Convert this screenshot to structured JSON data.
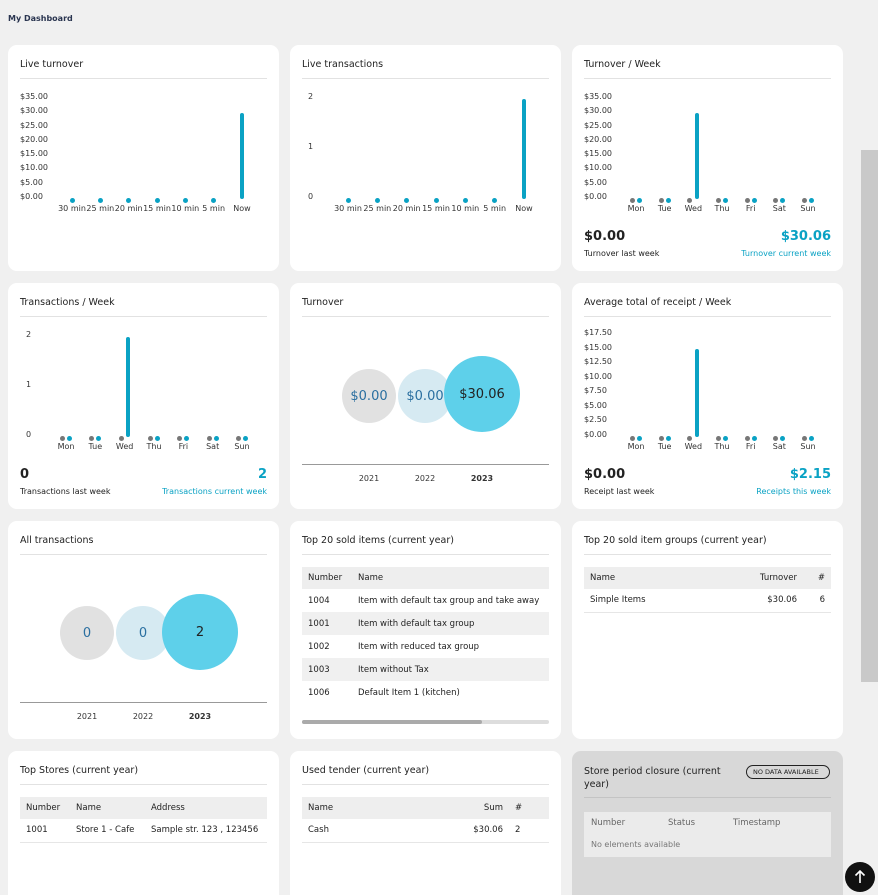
{
  "page": {
    "title": "My Dashboard"
  },
  "colors": {
    "accent": "#0aa2c4",
    "bubble_current": "#5ed0ea",
    "bubble_prev": "#d6eaf2",
    "bubble_old": "#e1e1e1",
    "card": "#ffffff",
    "page_bg": "#f0f0f0"
  },
  "live_turnover": {
    "title": "Live turnover",
    "y_ticks": [
      "$35.00",
      "$30.00",
      "$25.00",
      "$20.00",
      "$15.00",
      "$10.00",
      "$5.00",
      "$0.00"
    ],
    "x_ticks": [
      "30 min",
      "25 min",
      "20 min",
      "15 min",
      "10 min",
      "5 min",
      "Now"
    ]
  },
  "live_transactions": {
    "title": "Live transactions",
    "y_ticks": [
      "2",
      "1",
      "0"
    ],
    "x_ticks": [
      "30 min",
      "25 min",
      "20 min",
      "15 min",
      "10 min",
      "5 min",
      "Now"
    ]
  },
  "turnover_week": {
    "title": "Turnover / Week",
    "y_ticks": [
      "$35.00",
      "$30.00",
      "$25.00",
      "$20.00",
      "$15.00",
      "$10.00",
      "$5.00",
      "$0.00"
    ],
    "x_ticks": [
      "Mon",
      "Tue",
      "Wed",
      "Thu",
      "Fri",
      "Sat",
      "Sun"
    ],
    "last_value": "$0.00",
    "last_label": "Turnover last week",
    "current_value": "$30.06",
    "current_label": "Turnover current week"
  },
  "transactions_week": {
    "title": "Transactions / Week",
    "y_ticks": [
      "2",
      "1",
      "0"
    ],
    "x_ticks": [
      "Mon",
      "Tue",
      "Wed",
      "Thu",
      "Fri",
      "Sat",
      "Sun"
    ],
    "last_value": "0",
    "last_label": "Transactions last week",
    "current_value": "2",
    "current_label": "Transactions current week"
  },
  "turnover": {
    "title": "Turnover",
    "bubbles": [
      "$0.00",
      "$0.00",
      "$30.06"
    ],
    "years": [
      "2021",
      "2022",
      "2023"
    ]
  },
  "avg_receipt_week": {
    "title": "Average total of receipt / Week",
    "y_ticks": [
      "$17.50",
      "$15.00",
      "$12.50",
      "$10.00",
      "$7.50",
      "$5.00",
      "$2.50",
      "$0.00"
    ],
    "x_ticks": [
      "Mon",
      "Tue",
      "Wed",
      "Thu",
      "Fri",
      "Sat",
      "Sun"
    ],
    "last_value": "$0.00",
    "last_label": "Receipt last week",
    "current_value": "$2.15",
    "current_label": "Receipts this week"
  },
  "all_transactions": {
    "title": "All transactions",
    "bubbles": [
      "0",
      "0",
      "2"
    ],
    "years": [
      "2021",
      "2022",
      "2023"
    ]
  },
  "top_items": {
    "title": "Top 20 sold items (current year)",
    "headers": [
      "Number",
      "Name"
    ],
    "rows": [
      [
        "1004",
        "Item with default tax group and take away"
      ],
      [
        "1001",
        "Item with default tax group"
      ],
      [
        "1002",
        "Item with reduced tax group"
      ],
      [
        "1003",
        "Item without Tax"
      ],
      [
        "1006",
        "Default Item 1 (kitchen)"
      ]
    ]
  },
  "top_groups": {
    "title": "Top 20 sold item groups (current year)",
    "headers": [
      "Name",
      "Turnover",
      "#"
    ],
    "rows": [
      [
        "Simple Items",
        "$30.06",
        "6"
      ]
    ]
  },
  "top_stores": {
    "title": "Top Stores (current year)",
    "headers": [
      "Number",
      "Name",
      "Address"
    ],
    "rows": [
      [
        "1001",
        "Store 1 - Cafe",
        "Sample str. 123 , 123456"
      ]
    ]
  },
  "used_tender": {
    "title": "Used tender (current year)",
    "headers": [
      "Name",
      "Sum",
      "#"
    ],
    "rows": [
      [
        "Cash",
        "$30.06",
        "2"
      ]
    ]
  },
  "closure": {
    "title": "Store period closure (current year)",
    "badge": "NO DATA AVAILABLE",
    "headers": [
      "Number",
      "Status",
      "Timestamp"
    ],
    "empty": "No elements available"
  },
  "chart_data": [
    {
      "type": "bar",
      "title": "Live turnover",
      "categories": [
        "30 min",
        "25 min",
        "20 min",
        "15 min",
        "10 min",
        "5 min",
        "Now"
      ],
      "values": [
        0,
        0,
        0,
        0,
        0,
        0,
        30.06
      ],
      "ylim": [
        0,
        35
      ]
    },
    {
      "type": "bar",
      "title": "Live transactions",
      "categories": [
        "30 min",
        "25 min",
        "20 min",
        "15 min",
        "10 min",
        "5 min",
        "Now"
      ],
      "values": [
        0,
        0,
        0,
        0,
        0,
        0,
        2
      ],
      "ylim": [
        0,
        2
      ]
    },
    {
      "type": "bar",
      "title": "Turnover / Week",
      "categories": [
        "Mon",
        "Tue",
        "Wed",
        "Thu",
        "Fri",
        "Sat",
        "Sun"
      ],
      "series": [
        {
          "values": [
            0,
            0,
            0,
            0,
            0,
            0,
            0
          ]
        },
        {
          "values": [
            0,
            0,
            30.06,
            0,
            0,
            0,
            0
          ]
        }
      ],
      "ylim": [
        0,
        35
      ]
    },
    {
      "type": "bar",
      "title": "Transactions / Week",
      "categories": [
        "Mon",
        "Tue",
        "Wed",
        "Thu",
        "Fri",
        "Sat",
        "Sun"
      ],
      "series": [
        {
          "values": [
            0,
            0,
            0,
            0,
            0,
            0,
            0
          ]
        },
        {
          "values": [
            0,
            0,
            2,
            0,
            0,
            0,
            0
          ]
        }
      ],
      "ylim": [
        0,
        2
      ]
    },
    {
      "type": "bar",
      "title": "Average total of receipt / Week",
      "categories": [
        "Mon",
        "Tue",
        "Wed",
        "Thu",
        "Fri",
        "Sat",
        "Sun"
      ],
      "series": [
        {
          "values": [
            0,
            0,
            0,
            0,
            0,
            0,
            0
          ]
        },
        {
          "values": [
            0,
            0,
            15.03,
            0,
            0,
            0,
            0
          ]
        }
      ],
      "ylim": [
        0,
        17.5
      ]
    }
  ]
}
